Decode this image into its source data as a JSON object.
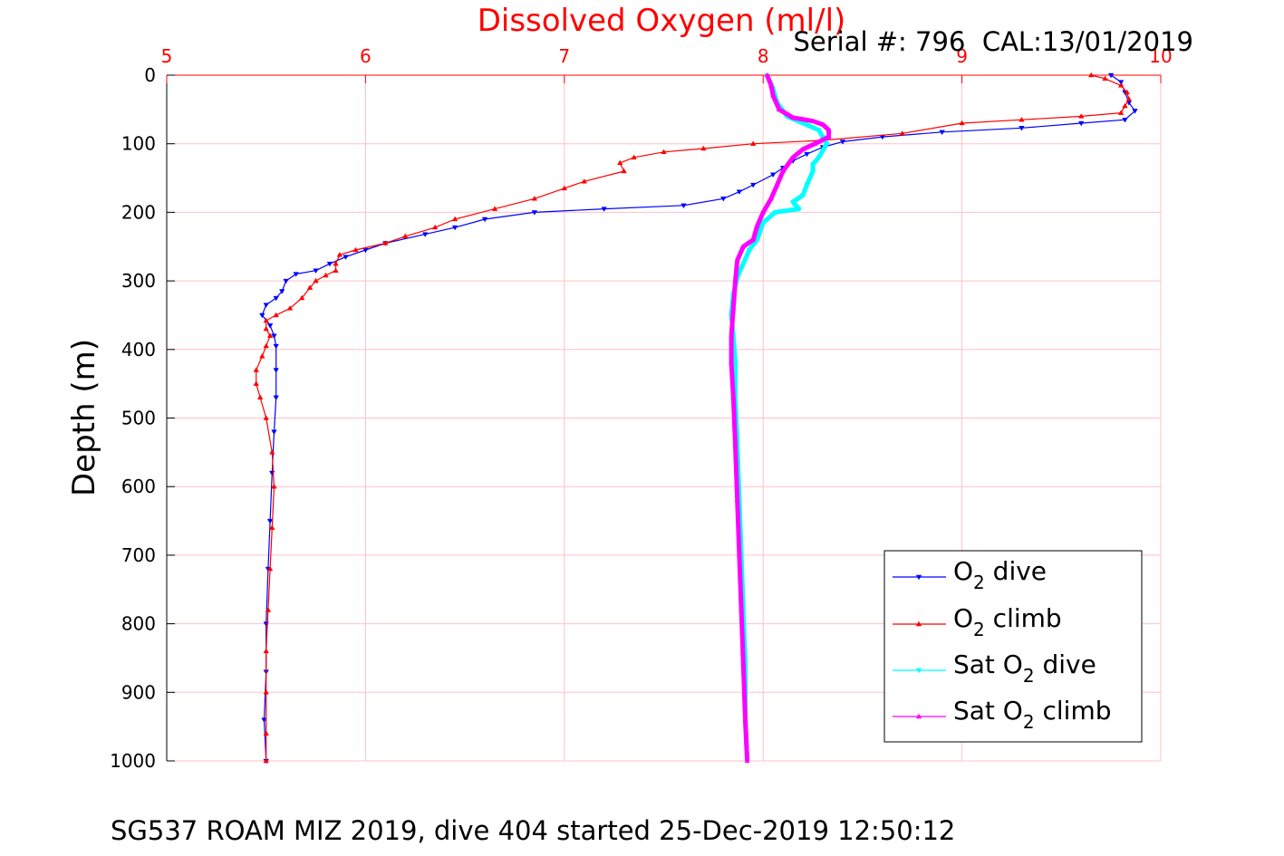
{
  "chart_data": {
    "type": "scatter",
    "title": "Dissolved Oxygen (ml/l)",
    "serial_text": "Serial #: 796  CAL:13/01/2019",
    "ylabel": "Depth (m)",
    "footer": "SG537 ROAM MIZ 2019, dive 404 started 25-Dec-2019 12:50:12",
    "xlim": [
      5,
      10
    ],
    "ylim": [
      0,
      1000
    ],
    "y_reversed": true,
    "x_axis_position": "top",
    "x_ticks": [
      "5",
      "6",
      "7",
      "8",
      "9",
      "10"
    ],
    "y_ticks": [
      "0",
      "100",
      "200",
      "300",
      "400",
      "500",
      "600",
      "700",
      "800",
      "900",
      "1000"
    ],
    "grid": true,
    "legend_position": "bottom-right",
    "colors": {
      "title": "#ff0000",
      "x_ticks": "#ff0000",
      "grid": "#ffc0c8",
      "o2_dive": "#0000ff",
      "o2_climb": "#ff0000",
      "sat_dive": "#00ffff",
      "sat_climb": "#ff00ff"
    },
    "series": [
      {
        "name": "O2 dive",
        "legend": [
          "O",
          "2",
          " dive"
        ],
        "color": "#0000ff",
        "marker": "triangle-down",
        "points": [
          [
            9.75,
            0
          ],
          [
            9.8,
            10
          ],
          [
            9.82,
            25
          ],
          [
            9.84,
            40
          ],
          [
            9.87,
            52
          ],
          [
            9.82,
            65
          ],
          [
            9.6,
            70
          ],
          [
            9.3,
            77
          ],
          [
            8.9,
            83
          ],
          [
            8.6,
            90
          ],
          [
            8.4,
            97
          ],
          [
            8.3,
            105
          ],
          [
            8.22,
            115
          ],
          [
            8.15,
            125
          ],
          [
            8.1,
            135
          ],
          [
            8.05,
            145
          ],
          [
            7.95,
            160
          ],
          [
            7.88,
            170
          ],
          [
            7.8,
            180
          ],
          [
            7.6,
            190
          ],
          [
            7.2,
            195
          ],
          [
            6.85,
            200
          ],
          [
            6.6,
            210
          ],
          [
            6.45,
            222
          ],
          [
            6.3,
            232
          ],
          [
            6.1,
            245
          ],
          [
            6.0,
            255
          ],
          [
            5.9,
            265
          ],
          [
            5.82,
            275
          ],
          [
            5.75,
            285
          ],
          [
            5.65,
            290
          ],
          [
            5.6,
            300
          ],
          [
            5.58,
            315
          ],
          [
            5.55,
            325
          ],
          [
            5.5,
            335
          ],
          [
            5.48,
            350
          ],
          [
            5.52,
            365
          ],
          [
            5.54,
            380
          ],
          [
            5.55,
            395
          ],
          [
            5.55,
            430
          ],
          [
            5.55,
            470
          ],
          [
            5.54,
            520
          ],
          [
            5.53,
            580
          ],
          [
            5.52,
            650
          ],
          [
            5.51,
            720
          ],
          [
            5.5,
            800
          ],
          [
            5.5,
            870
          ],
          [
            5.49,
            940
          ],
          [
            5.5,
            1000
          ]
        ]
      },
      {
        "name": "O2 climb",
        "legend": [
          "O",
          "2",
          " climb"
        ],
        "color": "#ff0000",
        "marker": "triangle-up",
        "points": [
          [
            5.5,
            1000
          ],
          [
            5.5,
            960
          ],
          [
            5.5,
            900
          ],
          [
            5.5,
            840
          ],
          [
            5.51,
            780
          ],
          [
            5.52,
            720
          ],
          [
            5.53,
            660
          ],
          [
            5.54,
            600
          ],
          [
            5.53,
            550
          ],
          [
            5.5,
            500
          ],
          [
            5.47,
            470
          ],
          [
            5.45,
            450
          ],
          [
            5.45,
            430
          ],
          [
            5.48,
            410
          ],
          [
            5.5,
            395
          ],
          [
            5.52,
            380
          ],
          [
            5.5,
            370
          ],
          [
            5.5,
            358
          ],
          [
            5.55,
            350
          ],
          [
            5.62,
            340
          ],
          [
            5.68,
            325
          ],
          [
            5.72,
            310
          ],
          [
            5.75,
            300
          ],
          [
            5.8,
            292
          ],
          [
            5.85,
            285
          ],
          [
            5.85,
            275
          ],
          [
            5.87,
            262
          ],
          [
            5.95,
            255
          ],
          [
            6.1,
            245
          ],
          [
            6.2,
            235
          ],
          [
            6.35,
            222
          ],
          [
            6.45,
            210
          ],
          [
            6.65,
            195
          ],
          [
            6.85,
            180
          ],
          [
            7.0,
            165
          ],
          [
            7.1,
            155
          ],
          [
            7.3,
            140
          ],
          [
            7.28,
            128
          ],
          [
            7.35,
            120
          ],
          [
            7.5,
            112
          ],
          [
            7.7,
            107
          ],
          [
            7.95,
            100
          ],
          [
            8.3,
            95
          ],
          [
            8.7,
            85
          ],
          [
            9.0,
            70
          ],
          [
            9.3,
            65
          ],
          [
            9.6,
            60
          ],
          [
            9.8,
            55
          ],
          [
            9.82,
            45
          ],
          [
            9.84,
            35
          ],
          [
            9.83,
            25
          ],
          [
            9.8,
            15
          ],
          [
            9.72,
            5
          ],
          [
            9.65,
            0
          ]
        ]
      },
      {
        "name": "Sat O2 dive",
        "legend": [
          "Sat O",
          "2",
          " dive"
        ],
        "color": "#00ffff",
        "marker": "triangle-down",
        "points": [
          [
            8.02,
            0
          ],
          [
            8.05,
            20
          ],
          [
            8.07,
            40
          ],
          [
            8.12,
            60
          ],
          [
            8.2,
            70
          ],
          [
            8.28,
            80
          ],
          [
            8.3,
            90
          ],
          [
            8.32,
            100
          ],
          [
            8.3,
            110
          ],
          [
            8.28,
            120
          ],
          [
            8.25,
            130
          ],
          [
            8.25,
            140
          ],
          [
            8.22,
            160
          ],
          [
            8.2,
            175
          ],
          [
            8.15,
            185
          ],
          [
            8.18,
            195
          ],
          [
            8.06,
            200
          ],
          [
            8.0,
            215
          ],
          [
            7.97,
            240
          ],
          [
            7.93,
            255
          ],
          [
            7.9,
            275
          ],
          [
            7.87,
            295
          ],
          [
            7.85,
            320
          ],
          [
            7.84,
            350
          ],
          [
            7.85,
            380
          ],
          [
            7.86,
            420
          ],
          [
            7.86,
            470
          ],
          [
            7.87,
            540
          ],
          [
            7.88,
            620
          ],
          [
            7.89,
            700
          ],
          [
            7.9,
            780
          ],
          [
            7.91,
            860
          ],
          [
            7.91,
            940
          ],
          [
            7.92,
            1000
          ]
        ]
      },
      {
        "name": "Sat O2 climb",
        "legend": [
          "Sat O",
          "2",
          " climb"
        ],
        "color": "#ff00ff",
        "marker": "triangle-up",
        "points": [
          [
            7.92,
            1000
          ],
          [
            7.91,
            940
          ],
          [
            7.9,
            860
          ],
          [
            7.89,
            780
          ],
          [
            7.88,
            700
          ],
          [
            7.87,
            620
          ],
          [
            7.86,
            540
          ],
          [
            7.85,
            470
          ],
          [
            7.84,
            420
          ],
          [
            7.84,
            380
          ],
          [
            7.85,
            340
          ],
          [
            7.86,
            300
          ],
          [
            7.87,
            270
          ],
          [
            7.9,
            250
          ],
          [
            7.95,
            240
          ],
          [
            7.97,
            220
          ],
          [
            8.0,
            200
          ],
          [
            8.04,
            180
          ],
          [
            8.07,
            160
          ],
          [
            8.1,
            140
          ],
          [
            8.15,
            120
          ],
          [
            8.2,
            108
          ],
          [
            8.26,
            100
          ],
          [
            8.33,
            90
          ],
          [
            8.33,
            80
          ],
          [
            8.3,
            72
          ],
          [
            8.25,
            67
          ],
          [
            8.15,
            62
          ],
          [
            8.08,
            50
          ],
          [
            8.05,
            30
          ],
          [
            8.04,
            15
          ],
          [
            8.02,
            0
          ]
        ]
      }
    ]
  }
}
